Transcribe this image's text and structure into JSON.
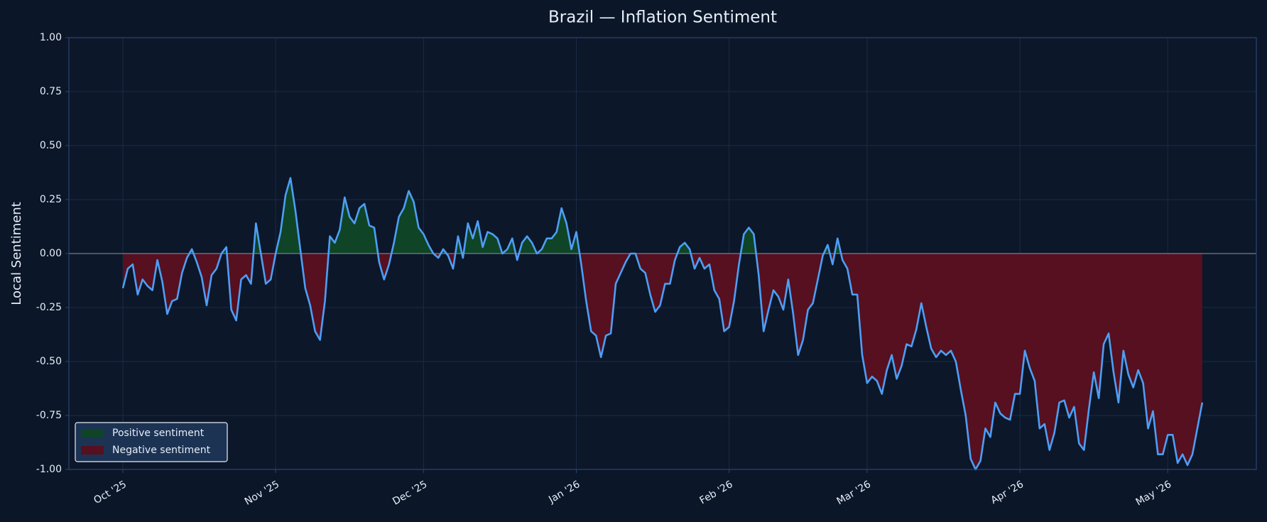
{
  "chart_data": {
    "type": "area-line",
    "title": "Brazil — Inflation Sentiment",
    "ylabel": "Local Sentiment",
    "categories": [
      "Oct '25",
      null,
      null,
      null,
      null,
      null,
      null,
      null,
      null,
      null,
      null,
      null,
      null,
      null,
      null,
      null,
      null,
      null,
      null,
      null,
      null,
      null,
      null,
      null,
      null,
      null,
      null,
      null,
      null,
      null,
      null,
      "Nov '25",
      null,
      null,
      null,
      null,
      null,
      null,
      null,
      null,
      null,
      null,
      null,
      null,
      null,
      null,
      null,
      null,
      null,
      null,
      null,
      null,
      null,
      null,
      null,
      null,
      null,
      null,
      null,
      null,
      null,
      "Dec '25",
      null,
      null,
      null,
      null,
      null,
      null,
      null,
      null,
      null,
      null,
      null,
      null,
      null,
      null,
      null,
      null,
      null,
      null,
      null,
      null,
      null,
      null,
      null,
      null,
      null,
      null,
      null,
      null,
      null,
      null,
      "Jan '26",
      null,
      null,
      null,
      null,
      null,
      null,
      null,
      null,
      null,
      null,
      null,
      null,
      null,
      null,
      null,
      null,
      null,
      null,
      null,
      null,
      null,
      null,
      null,
      null,
      null,
      null,
      null,
      null,
      null,
      null,
      "Feb '26",
      null,
      null,
      null,
      null,
      null,
      null,
      null,
      null,
      null,
      null,
      null,
      null,
      null,
      null,
      null,
      null,
      null,
      null,
      null,
      null,
      null,
      null,
      null,
      null,
      null,
      null,
      null,
      "Mar '26",
      null,
      null,
      null,
      null,
      null,
      null,
      null,
      null,
      null,
      null,
      null,
      null,
      null,
      null,
      null,
      null,
      null,
      null,
      null,
      null,
      null,
      null,
      null,
      null,
      null,
      null,
      null,
      null,
      null,
      null,
      "Apr '26",
      null,
      null,
      null,
      null,
      null,
      null,
      null,
      null,
      null,
      null,
      null,
      null,
      null,
      null,
      null,
      null,
      null,
      null,
      null,
      null,
      null,
      null,
      null,
      null,
      null,
      null,
      null,
      null,
      null,
      "May '26",
      null,
      null,
      null,
      null,
      null,
      null,
      null
    ],
    "values": [
      -0.16,
      -0.07,
      -0.05,
      -0.19,
      -0.12,
      -0.15,
      -0.17,
      -0.03,
      -0.13,
      -0.28,
      -0.22,
      -0.21,
      -0.09,
      -0.02,
      0.02,
      -0.04,
      -0.11,
      -0.24,
      -0.1,
      -0.07,
      0.0,
      0.03,
      -0.26,
      -0.31,
      -0.12,
      -0.1,
      -0.14,
      0.14,
      0.0,
      -0.14,
      -0.12,
      0.0,
      0.1,
      0.27,
      0.35,
      0.2,
      0.02,
      -0.16,
      -0.24,
      -0.36,
      -0.4,
      -0.22,
      0.08,
      0.05,
      0.11,
      0.26,
      0.17,
      0.14,
      0.21,
      0.23,
      0.13,
      0.12,
      -0.04,
      -0.12,
      -0.05,
      0.05,
      0.17,
      0.21,
      0.29,
      0.24,
      0.12,
      0.09,
      0.04,
      0.0,
      -0.02,
      0.02,
      -0.01,
      -0.07,
      0.08,
      -0.02,
      0.14,
      0.07,
      0.15,
      0.03,
      0.1,
      0.09,
      0.07,
      0.0,
      0.02,
      0.07,
      -0.03,
      0.05,
      0.08,
      0.05,
      0.0,
      0.02,
      0.07,
      0.07,
      0.1,
      0.21,
      0.14,
      0.02,
      0.1,
      -0.05,
      -0.22,
      -0.36,
      -0.38,
      -0.48,
      -0.38,
      -0.37,
      -0.14,
      -0.09,
      -0.04,
      0.0,
      0.0,
      -0.07,
      -0.09,
      -0.19,
      -0.27,
      -0.24,
      -0.14,
      -0.14,
      -0.03,
      0.03,
      0.05,
      0.02,
      -0.07,
      -0.02,
      -0.07,
      -0.05,
      -0.17,
      -0.21,
      -0.36,
      -0.34,
      -0.22,
      -0.05,
      0.09,
      0.12,
      0.09,
      -0.1,
      -0.36,
      -0.26,
      -0.17,
      -0.2,
      -0.26,
      -0.12,
      -0.28,
      -0.47,
      -0.4,
      -0.26,
      -0.23,
      -0.12,
      -0.01,
      0.04,
      -0.05,
      0.07,
      -0.03,
      -0.07,
      -0.19,
      -0.19,
      -0.47,
      -0.6,
      -0.57,
      -0.59,
      -0.65,
      -0.54,
      -0.47,
      -0.58,
      -0.52,
      -0.42,
      -0.43,
      -0.35,
      -0.23,
      -0.34,
      -0.44,
      -0.48,
      -0.45,
      -0.47,
      -0.45,
      -0.5,
      -0.63,
      -0.75,
      -0.95,
      -1.0,
      -0.96,
      -0.81,
      -0.85,
      -0.69,
      -0.74,
      -0.76,
      -0.77,
      -0.65,
      -0.65,
      -0.45,
      -0.53,
      -0.59,
      -0.81,
      -0.79,
      -0.91,
      -0.83,
      -0.69,
      -0.68,
      -0.76,
      -0.71,
      -0.88,
      -0.91,
      -0.72,
      -0.55,
      -0.67,
      -0.42,
      -0.37,
      -0.55,
      -0.69,
      -0.45,
      -0.56,
      -0.62,
      -0.54,
      -0.6,
      -0.81,
      -0.73,
      -0.93,
      -0.93,
      -0.84,
      -0.84,
      -0.97,
      -0.93,
      -0.98,
      -0.93,
      -0.81,
      -0.69
    ],
    "line_color": "#4d9ef5",
    "positive": {
      "name": "Positive sentiment",
      "color": "#0f4426"
    },
    "negative": {
      "name": "Negative sentiment",
      "color": "#56101f"
    },
    "ylim": [
      -1,
      1
    ],
    "yticks": [
      {
        "value": -1,
        "label": "-1.00"
      },
      {
        "value": -0.75,
        "label": "-0.75"
      },
      {
        "value": -0.5,
        "label": "-0.50"
      },
      {
        "value": -0.25,
        "label": "-0.25"
      },
      {
        "value": 0,
        "label": "0.00"
      },
      {
        "value": 0.25,
        "label": "0.25"
      },
      {
        "value": 0.5,
        "label": "0.50"
      },
      {
        "value": 0.75,
        "label": "0.75"
      },
      {
        "value": 1,
        "label": "1.00"
      }
    ],
    "grid": true,
    "legend": "lower left"
  }
}
